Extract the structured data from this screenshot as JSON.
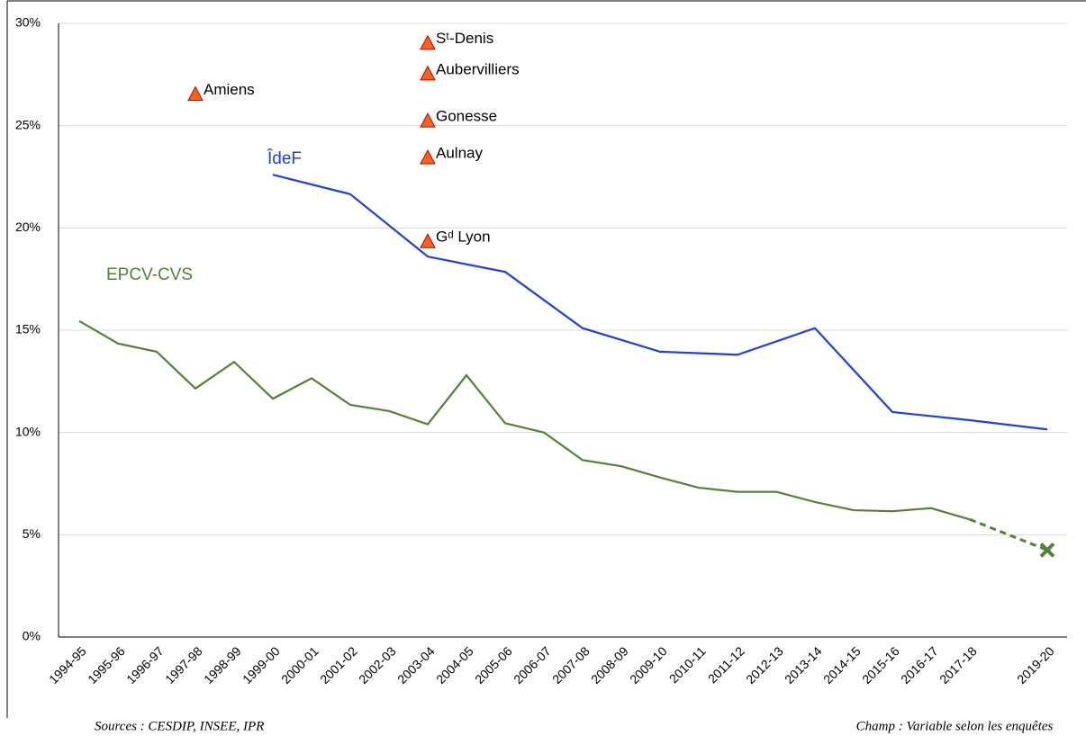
{
  "chart_data": {
    "type": "line",
    "categories": [
      "1994-95",
      "1995-96",
      "1996-97",
      "1997-98",
      "1998-99",
      "1999-00",
      "2000-01",
      "2001-02",
      "2002-03",
      "2003-04",
      "2004-05",
      "2005-06",
      "2006-07",
      "2007-08",
      "2008-09",
      "2009-10",
      "2010-11",
      "2011-12",
      "2012-13",
      "2013-14",
      "2014-15",
      "2015-16",
      "2016-17",
      "2017-18",
      null,
      "2019-20"
    ],
    "series": [
      {
        "name": "EPCV-CVS",
        "color": "#548235",
        "gap_style": "dashed",
        "end_marker": "x",
        "values": [
          15.45,
          14.35,
          13.95,
          12.15,
          13.45,
          11.65,
          12.65,
          11.35,
          11.05,
          10.4,
          12.8,
          10.45,
          10.0,
          8.65,
          8.35,
          7.8,
          7.3,
          7.1,
          7.1,
          6.6,
          6.2,
          6.15,
          6.3,
          5.75,
          null,
          4.25
        ]
      },
      {
        "name": "ÎdeF",
        "color": "#1f3fe0",
        "connect_nulls": true,
        "values": [
          null,
          null,
          null,
          null,
          null,
          22.6,
          null,
          21.65,
          null,
          18.6,
          null,
          17.85,
          null,
          15.1,
          null,
          13.95,
          null,
          13.8,
          null,
          15.1,
          null,
          11.0,
          null,
          10.6,
          null,
          10.15
        ]
      }
    ],
    "points": [
      {
        "label": "Amiens",
        "category": "1997-98",
        "value": 26.5
      },
      {
        "label": "Sᵗ-Denis",
        "category": "2003-04",
        "value": 29.0
      },
      {
        "label": "Aubervilliers",
        "category": "2003-04",
        "value": 27.5
      },
      {
        "label": "Gonesse",
        "category": "2003-04",
        "value": 25.2
      },
      {
        "label": "Aulnay",
        "category": "2003-04",
        "value": 23.4
      },
      {
        "label": "Gᵈ Lyon",
        "category": "2003-04",
        "value": 19.3
      }
    ],
    "point_color": "#f4651c",
    "ylim": [
      0,
      30
    ],
    "yticks": [
      {
        "value": 0,
        "label": "0%"
      },
      {
        "value": 5,
        "label": "5%"
      },
      {
        "value": 10,
        "label": "10%"
      },
      {
        "value": 15,
        "label": "15%"
      },
      {
        "value": 20,
        "label": "20%"
      },
      {
        "value": 25,
        "label": "25%"
      },
      {
        "value": 30,
        "label": "30%"
      }
    ],
    "grid": true,
    "sources": "Sources : CESDIP, INSEE, IPR",
    "scope": "Champ : Variable selon les enquêtes"
  }
}
